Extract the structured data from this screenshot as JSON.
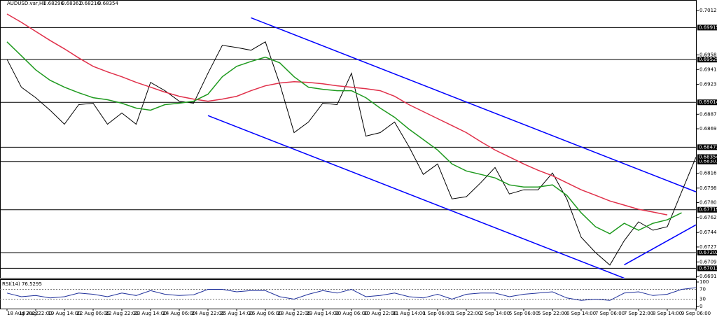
{
  "chart_data": [
    {
      "type": "line",
      "title": "AUDUSD.var,H1",
      "ohlc": [
        0.68296,
        0.68362,
        0.68216,
        0.68354
      ],
      "categories": [
        "18 Aug 2022",
        null,
        "18 Aug 22:00",
        null,
        "19 Aug 14:00",
        null,
        "22 Aug 06:00",
        null,
        "22 Aug 22:00",
        null,
        "23 Aug 14:00",
        null,
        "24 Aug 06:00",
        null,
        "24 Aug 22:00",
        null,
        "25 Aug 14:00",
        null,
        "26 Aug 06:00",
        null,
        "28 Aug 22:00",
        null,
        "29 Aug 14:00",
        null,
        "30 Aug 06:00",
        null,
        "30 Aug 22:00",
        null,
        "31 Aug 14:00",
        null,
        "1 Sep 06:00",
        null,
        "1 Sep 22:00",
        null,
        "2 Sep 14:00",
        null,
        "5 Sep 06:00",
        null,
        "5 Sep 22:00",
        null,
        "6 Sep 14:00",
        null,
        "7 Sep 06:00",
        null,
        "7 Sep 22:00",
        null,
        "8 Sep 14:00",
        null,
        "9 Sep 06:00"
      ],
      "series": [
        {
          "color": "#000000",
          "values": [
            0.69532,
            0.69196,
            0.6907,
            0.68919,
            0.6875,
            0.68986,
            0.69003,
            0.6875,
            0.68885,
            0.6875,
            0.69255,
            0.69154,
            0.69028,
            0.69003,
            0.69364,
            0.69701,
            0.69675,
            0.69642,
            0.69743,
            0.69238,
            0.68649,
            0.68776,
            0.69003,
            0.68986,
            0.69364,
            0.68607,
            0.68649,
            0.68776,
            0.68481,
            0.68145,
            0.68271,
            0.6785,
            0.67876,
            0.68044,
            0.68229,
            0.67909,
            0.6796,
            0.6796,
            0.68162,
            0.6785,
            0.67388,
            0.67203,
            0.67052,
            0.67346,
            0.67573,
            0.67472,
            0.67514,
            0.67935,
            0.68354
          ]
        },
        {
          "color": "#e0304a",
          "values": [
            0.70079,
            0.69978,
            0.69869,
            0.6976,
            0.69659,
            0.69549,
            0.69448,
            0.69381,
            0.69322,
            0.69255,
            0.69196,
            0.69137,
            0.69087,
            0.69053,
            0.69028,
            0.69053,
            0.69087,
            0.69154,
            0.69213,
            0.69247,
            0.69263,
            0.69255,
            0.69238,
            0.69213,
            0.69196,
            0.69179,
            0.69154,
            0.69087,
            0.68986,
            0.68902,
            0.68818,
            0.68734,
            0.68649,
            0.6854,
            0.68439,
            0.68355,
            0.68271,
            0.68195,
            0.68128,
            0.68044,
            0.6796,
            0.67893,
            0.67825,
            0.67775,
            0.67724,
            0.67691,
            0.67657,
            null,
            null
          ]
        },
        {
          "color": "#1f9a1f",
          "values": [
            0.69743,
            0.69575,
            0.69406,
            0.6928,
            0.69196,
            0.69129,
            0.6907,
            0.69045,
            0.69003,
            0.68944,
            0.68919,
            0.68986,
            0.69003,
            0.69028,
            0.69112,
            0.69322,
            0.69448,
            0.69507,
            0.69558,
            0.6949,
            0.69322,
            0.69196,
            0.69171,
            0.69154,
            0.69154,
            0.6907,
            0.68944,
            0.68834,
            0.68691,
            0.68565,
            0.68439,
            0.68271,
            0.68187,
            0.68145,
            0.68103,
            0.68019,
            0.67993,
            0.67993,
            0.68019,
            0.67893,
            0.67682,
            0.67514,
            0.6743,
            0.67556,
            0.67472,
            0.67556,
            0.67598,
            0.67682,
            null
          ]
        }
      ],
      "trendlines": [
        {
          "color": "#0000ff",
          "points": [
            [
              17,
              0.70033
            ],
            [
              48,
              0.67935
            ]
          ]
        },
        {
          "color": "#0000ff",
          "points": [
            [
              14,
              0.68854
            ],
            [
              43,
              0.66894
            ]
          ]
        },
        {
          "color": "#0000ff",
          "points": [
            [
              43,
              0.67055
            ],
            [
              48,
              0.67537
            ]
          ]
        }
      ],
      "levels": [
        0.69915,
        0.69529,
        0.69014,
        0.68473,
        0.68301,
        0.67719,
        0.67202,
        0.67013
      ],
      "ylim": [
        0.6689,
        0.7018
      ],
      "yticks": [
        {
          "value": 0.7012,
          "label": "0.70120"
        },
        0.69585,
        {
          "value": 0.6941,
          "label": "0.69410"
        },
        {
          "value": 0.6923,
          "label": "0.69230"
        },
        {
          "value": 0.6887,
          "label": "0.68870"
        },
        0.68695,
        {
          "value": 0.6816,
          "label": "0.68160"
        },
        {
          "value": 0.6798,
          "label": "0.67980"
        },
        0.67805,
        0.67625,
        0.67445,
        {
          "value": 0.6727,
          "label": "0.67270"
        },
        {
          "value": 0.6709,
          "label": "0.67090"
        },
        0.66915
      ]
    },
    {
      "type": "line",
      "title": "RSI(14) 76.5295",
      "color": "#1e2f9a",
      "values": [
        55,
        40,
        45,
        35,
        40,
        55,
        50,
        40,
        55,
        45,
        65,
        50,
        45,
        48,
        70,
        70,
        60,
        65,
        65,
        40,
        30,
        50,
        65,
        55,
        70,
        40,
        45,
        55,
        40,
        35,
        50,
        30,
        50,
        55,
        55,
        40,
        50,
        55,
        60,
        35,
        25,
        30,
        25,
        55,
        60,
        45,
        50,
        70,
        77
      ],
      "ylim": [
        0,
        100
      ],
      "yticks": [
        100,
        70,
        30,
        0
      ]
    }
  ]
}
